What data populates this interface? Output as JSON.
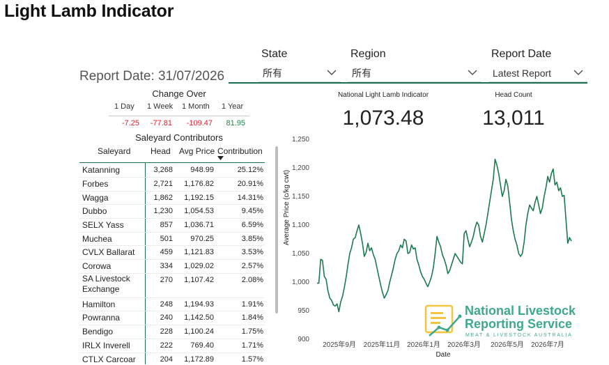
{
  "page": {
    "title": "Light Lamb Indicator"
  },
  "filters": {
    "state": {
      "label": "State",
      "value": "所有"
    },
    "region": {
      "label": "Region",
      "value": "所有"
    },
    "report_date": {
      "label": "Report Date",
      "value": "Latest Report"
    }
  },
  "report_date_text": "Report Date: 31/07/2026",
  "kpis": {
    "indicator": {
      "caption": "National Light Lamb Indicator",
      "value": "1,073.48"
    },
    "head_count": {
      "caption": "Head Count",
      "value": "13,011"
    }
  },
  "change_over": {
    "title": "Change Over",
    "periods": [
      {
        "label": "1 Day",
        "value": "-7.25",
        "color": "#e0202e"
      },
      {
        "label": "1 Week",
        "value": "-77.81",
        "color": "#e0202e"
      },
      {
        "label": "1 Month",
        "value": "-109.47",
        "color": "#e0202e"
      },
      {
        "label": "1 Year",
        "value": "81.95",
        "color": "#1a8a4a"
      }
    ]
  },
  "saleyard": {
    "title": "Saleyard Contributors",
    "columns": [
      "Saleyard",
      "Head",
      "Avg Price",
      "Contribution"
    ],
    "sort_column": "Contribution",
    "rows": [
      {
        "name": "Katanning",
        "head": "3,268",
        "price": "948.99",
        "contribution": "25.12%"
      },
      {
        "name": "Forbes",
        "head": "2,721",
        "price": "1,176.82",
        "contribution": "20.91%"
      },
      {
        "name": "Wagga",
        "head": "1,862",
        "price": "1,192.15",
        "contribution": "14.31%"
      },
      {
        "name": "Dubbo",
        "head": "1,230",
        "price": "1,054.53",
        "contribution": "9.45%"
      },
      {
        "name": "SELX Yass",
        "head": "857",
        "price": "1,036.71",
        "contribution": "6.59%"
      },
      {
        "name": "Muchea",
        "head": "501",
        "price": "970.25",
        "contribution": "3.85%"
      },
      {
        "name": "CVLX Ballarat",
        "head": "459",
        "price": "1,121.83",
        "contribution": "3.53%"
      },
      {
        "name": "Corowa",
        "head": "334",
        "price": "1,029.02",
        "contribution": "2.57%"
      },
      {
        "name": "SA Livestock Exchange",
        "head": "270",
        "price": "1,107.42",
        "contribution": "2.08%"
      },
      {
        "name": "Hamilton",
        "head": "248",
        "price": "1,194.93",
        "contribution": "1.91%"
      },
      {
        "name": "Powranna",
        "head": "240",
        "price": "1,142.50",
        "contribution": "1.84%"
      },
      {
        "name": "Bendigo",
        "head": "228",
        "price": "1,100.24",
        "contribution": "1.75%"
      },
      {
        "name": "IRLX Inverell",
        "head": "222",
        "price": "769.40",
        "contribution": "1.71%"
      },
      {
        "name": "CTLX Carcoar",
        "head": "204",
        "price": "1,172.89",
        "contribution": "1.57%"
      }
    ]
  },
  "branding": {
    "name_line1": "National Livestock",
    "name_line2": "Reporting Service",
    "subtitle": "MEAT & LIVESTOCK AUSTRALIA",
    "color": "#3ea98c"
  },
  "chart_data": {
    "type": "line",
    "xlabel": "Date",
    "ylabel": "Average Price (c/kg cwt)",
    "ylim": [
      900,
      1250
    ],
    "yticks": [
      "900",
      "950",
      "1,000",
      "1,050",
      "1,100",
      "1,150",
      "1,200",
      "1,250"
    ],
    "xticks": [
      "2025年9月",
      "2025年11月",
      "2026年1月",
      "2026年3月",
      "2026年5月",
      "2026年7月"
    ],
    "grid": false,
    "line_color": "#1a7a4e",
    "series": [
      {
        "values": [
          998,
          998,
          1040,
          1038,
          1010,
          1005,
          985,
          972,
          968,
          960,
          958,
          962,
          948,
          965,
          975,
          990,
          1008,
          1030,
          1050,
          1060,
          1075,
          1078,
          1090,
          1100,
          1085,
          1068,
          1045,
          1052,
          1068,
          1055,
          1060,
          1048,
          1040,
          1025,
          1010,
          995,
          982,
          972,
          978,
          985,
          1000,
          1012,
          1025,
          1040,
          1050,
          1055,
          1065,
          1060,
          1075,
          1072,
          1050,
          1052,
          1065,
          1058,
          1060,
          1040,
          1030,
          1018,
          1010,
          1005,
          998,
          992,
          1000,
          1010,
          1025,
          1050,
          1080,
          1070,
          1062,
          1048,
          1040,
          1030,
          1015,
          1020,
          1030,
          1040,
          1050,
          1045,
          1040,
          1035,
          1032,
          1085,
          1090,
          1075,
          1062,
          1070,
          1080,
          1095,
          1105,
          1100,
          1080,
          1070,
          1085,
          1100,
          1120,
          1140,
          1160,
          1180,
          1215,
          1205,
          1190,
          1170,
          1150,
          1160,
          1180,
          1168,
          1140,
          1110,
          1090,
          1075,
          1065,
          1050,
          1045,
          1050,
          1070,
          1100,
          1120,
          1135,
          1130,
          1125,
          1140,
          1150,
          1135,
          1120,
          1130,
          1150,
          1165,
          1185,
          1175,
          1190,
          1198,
          1170,
          1175,
          1160,
          1165,
          1150,
          1152,
          1110,
          1068,
          1078,
          1072
        ]
      }
    ]
  }
}
